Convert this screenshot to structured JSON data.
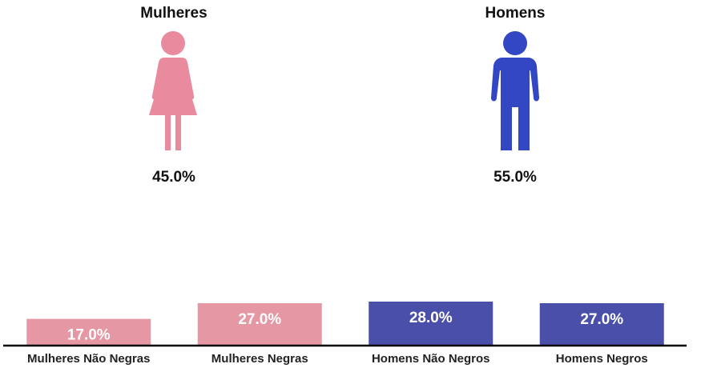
{
  "gender": {
    "women": {
      "title": "Mulheres",
      "percent": "45.0%",
      "icon": "woman-icon",
      "color": "#E98A9E"
    },
    "men": {
      "title": "Homens",
      "percent": "55.0%",
      "icon": "man-icon",
      "color": "#3346C4"
    }
  },
  "chart_data": {
    "type": "bar",
    "categories": [
      "Mulheres Não Negras",
      "Mulheres Negras",
      "Homens Não Negros",
      "Homens Negros"
    ],
    "values": [
      17.0,
      27.0,
      28.0,
      27.0
    ],
    "labels": [
      "17.0%",
      "27.0%",
      "28.0%",
      "27.0%"
    ],
    "colors": [
      "#E598A4",
      "#E598A4",
      "#4A50A9",
      "#4A50A9"
    ],
    "ylim": [
      0,
      28
    ],
    "grid": false
  }
}
